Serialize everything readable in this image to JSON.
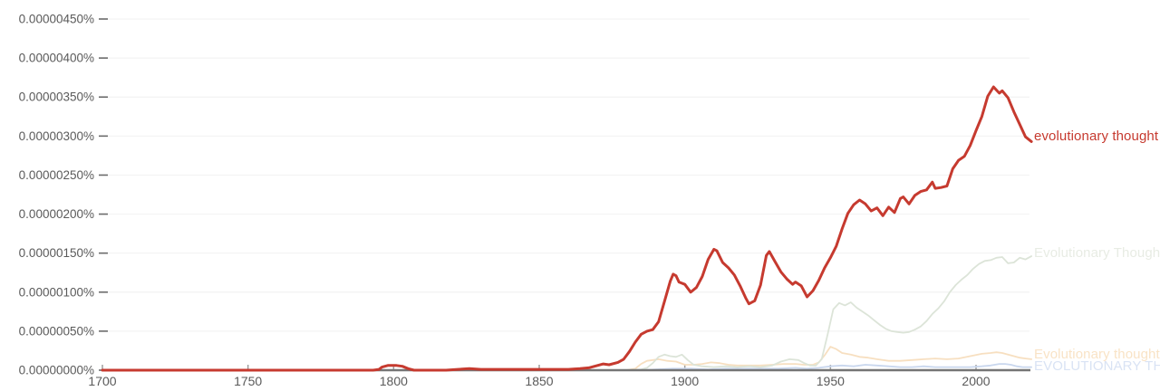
{
  "chart_data": {
    "type": "line",
    "title": "",
    "xlabel": "",
    "ylabel": "",
    "grid": "horizontal",
    "legend_position": "line-end-right",
    "xlim": [
      1700,
      2019
    ],
    "ylim": [
      0,
      450
    ],
    "y_unit": "1e-8 percent",
    "x_ticks": [
      1700,
      1750,
      1800,
      1850,
      1900,
      1950,
      2000
    ],
    "y_ticks": [
      {
        "v": 0,
        "label": "0.00000000%"
      },
      {
        "v": 50,
        "label": "0.00000050%"
      },
      {
        "v": 100,
        "label": "0.00000100%"
      },
      {
        "v": 150,
        "label": "0.00000150%"
      },
      {
        "v": 200,
        "label": "0.00000200%"
      },
      {
        "v": 250,
        "label": "0.00000250%"
      },
      {
        "v": 300,
        "label": "0.00000300%"
      },
      {
        "v": 350,
        "label": "0.00000350%"
      },
      {
        "v": 400,
        "label": "0.00000400%"
      },
      {
        "v": 450,
        "label": "0.00000450%"
      }
    ],
    "series": [
      {
        "name": "EVOLUTIONARY THOUGHT",
        "color": "#c9d7ee",
        "label_color": "#d9e3f4",
        "line_width": 1.8,
        "label_dy": -1,
        "points": [
          [
            1700,
            0
          ],
          [
            1750,
            0
          ],
          [
            1800,
            0
          ],
          [
            1850,
            0
          ],
          [
            1885,
            0
          ],
          [
            1890,
            1
          ],
          [
            1896,
            2
          ],
          [
            1902,
            2
          ],
          [
            1908,
            1
          ],
          [
            1914,
            2
          ],
          [
            1920,
            2
          ],
          [
            1926,
            2
          ],
          [
            1932,
            2
          ],
          [
            1938,
            3
          ],
          [
            1942,
            2
          ],
          [
            1946,
            3
          ],
          [
            1950,
            5
          ],
          [
            1954,
            6
          ],
          [
            1958,
            5
          ],
          [
            1962,
            7
          ],
          [
            1966,
            6
          ],
          [
            1970,
            5
          ],
          [
            1974,
            4
          ],
          [
            1978,
            4
          ],
          [
            1982,
            5
          ],
          [
            1986,
            4
          ],
          [
            1990,
            4
          ],
          [
            1994,
            4
          ],
          [
            1998,
            4
          ],
          [
            2002,
            5
          ],
          [
            2005,
            6
          ],
          [
            2008,
            8
          ],
          [
            2010,
            8
          ],
          [
            2012,
            7
          ],
          [
            2014,
            5
          ],
          [
            2016,
            4
          ],
          [
            2019,
            4
          ]
        ]
      },
      {
        "name": "Evolutionary thought",
        "color": "#f7dfc0",
        "label_color": "#f9e3c6",
        "line_width": 1.8,
        "label_dy": -5,
        "points": [
          [
            1700,
            0
          ],
          [
            1750,
            0
          ],
          [
            1800,
            0
          ],
          [
            1850,
            0
          ],
          [
            1880,
            0
          ],
          [
            1883,
            2
          ],
          [
            1885,
            8
          ],
          [
            1887,
            12
          ],
          [
            1889,
            13
          ],
          [
            1891,
            14
          ],
          [
            1894,
            12
          ],
          [
            1897,
            11
          ],
          [
            1900,
            7
          ],
          [
            1903,
            7
          ],
          [
            1906,
            8
          ],
          [
            1909,
            10
          ],
          [
            1912,
            9
          ],
          [
            1915,
            7
          ],
          [
            1918,
            6
          ],
          [
            1922,
            6
          ],
          [
            1926,
            6
          ],
          [
            1930,
            7
          ],
          [
            1934,
            8
          ],
          [
            1938,
            8
          ],
          [
            1941,
            7
          ],
          [
            1944,
            7
          ],
          [
            1946,
            10
          ],
          [
            1948,
            19
          ],
          [
            1950,
            30
          ],
          [
            1952,
            27
          ],
          [
            1954,
            22
          ],
          [
            1957,
            20
          ],
          [
            1960,
            17
          ],
          [
            1963,
            16
          ],
          [
            1966,
            14
          ],
          [
            1970,
            12
          ],
          [
            1974,
            12
          ],
          [
            1978,
            13
          ],
          [
            1982,
            14
          ],
          [
            1986,
            15
          ],
          [
            1990,
            14
          ],
          [
            1994,
            15
          ],
          [
            1998,
            18
          ],
          [
            2002,
            21
          ],
          [
            2005,
            22
          ],
          [
            2007,
            23
          ],
          [
            2009,
            22
          ],
          [
            2011,
            20
          ],
          [
            2013,
            18
          ],
          [
            2015,
            16
          ],
          [
            2017,
            15
          ],
          [
            2019,
            14
          ]
        ]
      },
      {
        "name": "Evolutionary Thought",
        "color": "#dce4d8",
        "label_color": "#e8ece4",
        "line_width": 1.8,
        "label_dy": -3,
        "points": [
          [
            1700,
            0
          ],
          [
            1750,
            0
          ],
          [
            1800,
            0
          ],
          [
            1850,
            0
          ],
          [
            1880,
            0
          ],
          [
            1885,
            1
          ],
          [
            1887,
            3
          ],
          [
            1889,
            9
          ],
          [
            1891,
            17
          ],
          [
            1893,
            20
          ],
          [
            1895,
            18
          ],
          [
            1897,
            17
          ],
          [
            1899,
            20
          ],
          [
            1901,
            13
          ],
          [
            1903,
            7
          ],
          [
            1906,
            5
          ],
          [
            1910,
            4
          ],
          [
            1914,
            5
          ],
          [
            1918,
            4
          ],
          [
            1922,
            5
          ],
          [
            1926,
            4
          ],
          [
            1930,
            6
          ],
          [
            1933,
            11
          ],
          [
            1936,
            14
          ],
          [
            1939,
            13
          ],
          [
            1941,
            9
          ],
          [
            1943,
            6
          ],
          [
            1945,
            6
          ],
          [
            1947,
            14
          ],
          [
            1949,
            45
          ],
          [
            1951,
            78
          ],
          [
            1953,
            86
          ],
          [
            1955,
            83
          ],
          [
            1957,
            87
          ],
          [
            1959,
            80
          ],
          [
            1961,
            75
          ],
          [
            1963,
            70
          ],
          [
            1965,
            64
          ],
          [
            1967,
            58
          ],
          [
            1969,
            53
          ],
          [
            1971,
            50
          ],
          [
            1973,
            49
          ],
          [
            1975,
            48
          ],
          [
            1977,
            49
          ],
          [
            1979,
            52
          ],
          [
            1981,
            56
          ],
          [
            1983,
            63
          ],
          [
            1985,
            72
          ],
          [
            1987,
            79
          ],
          [
            1989,
            88
          ],
          [
            1991,
            100
          ],
          [
            1993,
            109
          ],
          [
            1995,
            116
          ],
          [
            1997,
            122
          ],
          [
            1999,
            130
          ],
          [
            2001,
            136
          ],
          [
            2003,
            140
          ],
          [
            2005,
            141
          ],
          [
            2007,
            144
          ],
          [
            2009,
            145
          ],
          [
            2011,
            137
          ],
          [
            2013,
            138
          ],
          [
            2015,
            144
          ],
          [
            2017,
            142
          ],
          [
            2019,
            146
          ]
        ]
      },
      {
        "name": "evolutionary thought",
        "color": "#c63a2f",
        "label_color": "#c63a2f",
        "line_width": 3,
        "label_dy": -5,
        "points": [
          [
            1700,
            0
          ],
          [
            1720,
            0
          ],
          [
            1740,
            0
          ],
          [
            1760,
            0
          ],
          [
            1780,
            0
          ],
          [
            1793,
            0
          ],
          [
            1795,
            1
          ],
          [
            1796,
            4
          ],
          [
            1798,
            6
          ],
          [
            1801,
            6
          ],
          [
            1803,
            5
          ],
          [
            1805,
            2
          ],
          [
            1807,
            0
          ],
          [
            1812,
            0
          ],
          [
            1818,
            0
          ],
          [
            1822,
            1
          ],
          [
            1826,
            2
          ],
          [
            1830,
            1
          ],
          [
            1836,
            1
          ],
          [
            1842,
            1
          ],
          [
            1848,
            1
          ],
          [
            1854,
            1
          ],
          [
            1860,
            1
          ],
          [
            1864,
            2
          ],
          [
            1867,
            3
          ],
          [
            1870,
            6
          ],
          [
            1872,
            8
          ],
          [
            1874,
            7
          ],
          [
            1877,
            10
          ],
          [
            1879,
            14
          ],
          [
            1881,
            24
          ],
          [
            1883,
            36
          ],
          [
            1885,
            46
          ],
          [
            1887,
            50
          ],
          [
            1889,
            52
          ],
          [
            1891,
            62
          ],
          [
            1893,
            88
          ],
          [
            1895,
            114
          ],
          [
            1896,
            123
          ],
          [
            1897,
            121
          ],
          [
            1898,
            113
          ],
          [
            1900,
            110
          ],
          [
            1902,
            100
          ],
          [
            1904,
            106
          ],
          [
            1906,
            120
          ],
          [
            1908,
            142
          ],
          [
            1910,
            155
          ],
          [
            1911,
            153
          ],
          [
            1913,
            138
          ],
          [
            1915,
            131
          ],
          [
            1917,
            122
          ],
          [
            1919,
            108
          ],
          [
            1921,
            92
          ],
          [
            1922,
            85
          ],
          [
            1924,
            89
          ],
          [
            1926,
            109
          ],
          [
            1928,
            147
          ],
          [
            1929,
            152
          ],
          [
            1931,
            139
          ],
          [
            1933,
            126
          ],
          [
            1935,
            117
          ],
          [
            1937,
            110
          ],
          [
            1938,
            113
          ],
          [
            1940,
            108
          ],
          [
            1942,
            94
          ],
          [
            1944,
            102
          ],
          [
            1946,
            115
          ],
          [
            1948,
            131
          ],
          [
            1950,
            144
          ],
          [
            1952,
            159
          ],
          [
            1954,
            181
          ],
          [
            1956,
            201
          ],
          [
            1958,
            212
          ],
          [
            1960,
            218
          ],
          [
            1962,
            213
          ],
          [
            1964,
            204
          ],
          [
            1966,
            208
          ],
          [
            1968,
            198
          ],
          [
            1970,
            209
          ],
          [
            1972,
            202
          ],
          [
            1974,
            220
          ],
          [
            1975,
            222
          ],
          [
            1977,
            213
          ],
          [
            1979,
            224
          ],
          [
            1981,
            229
          ],
          [
            1983,
            231
          ],
          [
            1985,
            241
          ],
          [
            1986,
            233
          ],
          [
            1988,
            234
          ],
          [
            1990,
            236
          ],
          [
            1992,
            258
          ],
          [
            1994,
            269
          ],
          [
            1996,
            274
          ],
          [
            1998,
            288
          ],
          [
            2000,
            307
          ],
          [
            2002,
            325
          ],
          [
            2004,
            351
          ],
          [
            2006,
            363
          ],
          [
            2007,
            359
          ],
          [
            2008,
            355
          ],
          [
            2009,
            358
          ],
          [
            2011,
            349
          ],
          [
            2013,
            331
          ],
          [
            2015,
            315
          ],
          [
            2017,
            299
          ],
          [
            2019,
            293
          ]
        ]
      }
    ],
    "colors": {
      "grid_line": "#f3f3f3",
      "axis_line": "#757575",
      "tick_mark": "#9e9e9e",
      "y_dash": "#6b6b6b",
      "tick_text": "#5a5a5a",
      "background": "#ffffff"
    }
  }
}
